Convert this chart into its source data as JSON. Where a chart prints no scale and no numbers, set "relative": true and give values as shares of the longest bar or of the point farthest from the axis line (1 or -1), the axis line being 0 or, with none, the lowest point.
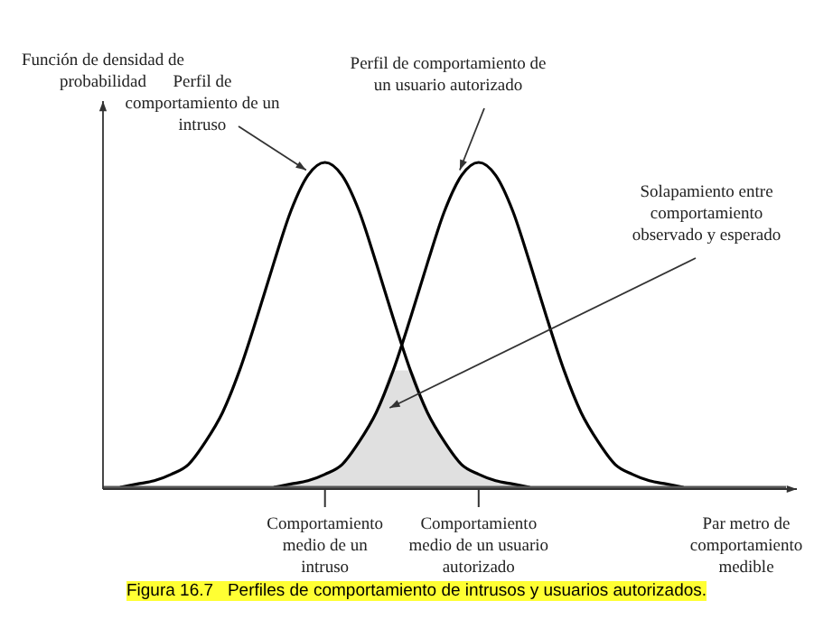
{
  "chart_data": {
    "type": "line",
    "title": "Figura 16.7   Perfiles de comportamiento de intrusos y usuarios autorizados.",
    "xlabel": "Par metro de comportamiento medible",
    "ylabel": "Función de densidad de probabilidad",
    "relative": true,
    "marker": "none",
    "line_style": "solid",
    "categories": [
      null,
      null,
      null,
      null,
      null,
      null,
      null,
      null,
      null,
      null,
      null,
      null,
      null,
      null,
      null,
      null,
      null,
      null,
      null,
      null,
      null,
      null,
      null,
      null,
      null,
      null,
      null,
      null,
      null,
      null,
      null,
      null,
      null,
      null,
      null,
      null,
      null,
      null,
      null,
      null,
      null
    ],
    "series": [
      {
        "name": "Perfil de comportamiento de un intruso",
        "color": "#000000",
        "values": [
          null,
          0,
          0.01,
          0.02,
          0.04,
          0.07,
          0.14,
          0.23,
          0.36,
          0.52,
          0.69,
          0.85,
          0.96,
          1,
          0.96,
          0.85,
          0.69,
          0.52,
          0.36,
          0.23,
          0.14,
          0.07,
          0.04,
          0.02,
          0.01,
          0,
          null,
          null,
          null,
          null,
          null,
          null,
          null,
          null,
          null,
          null,
          null,
          null,
          null,
          null,
          null
        ]
      },
      {
        "name": "Perfil de comportamiento de un usuario autorizado",
        "color": "#000000",
        "values": [
          null,
          null,
          null,
          null,
          null,
          null,
          null,
          null,
          null,
          null,
          0,
          0.01,
          0.02,
          0.04,
          0.07,
          0.14,
          0.23,
          0.36,
          0.52,
          0.69,
          0.85,
          0.96,
          1,
          0.96,
          0.85,
          0.69,
          0.52,
          0.36,
          0.23,
          0.14,
          0.07,
          0.04,
          0.02,
          0.01,
          0,
          null,
          null,
          null,
          null,
          null,
          null
        ]
      },
      {
        "type": "area",
        "color": "#e0e0e0",
        "values": [
          null,
          null,
          null,
          null,
          null,
          null,
          null,
          null,
          null,
          null,
          0,
          0.01,
          0.02,
          0.04,
          0.07,
          0.14,
          0.23,
          0.36,
          0.36,
          0.23,
          0.14,
          0.07,
          0.04,
          0.02,
          0.01,
          0,
          null,
          null,
          null,
          null,
          null,
          null,
          null,
          null,
          null,
          null,
          null,
          null,
          null,
          null,
          null
        ]
      }
    ],
    "annotations": [
      "Solapamiento entre comportamiento observado y esperado",
      "Comportamiento medio de un intruso",
      "Comportamiento medio de un usuario autorizado"
    ]
  }
}
